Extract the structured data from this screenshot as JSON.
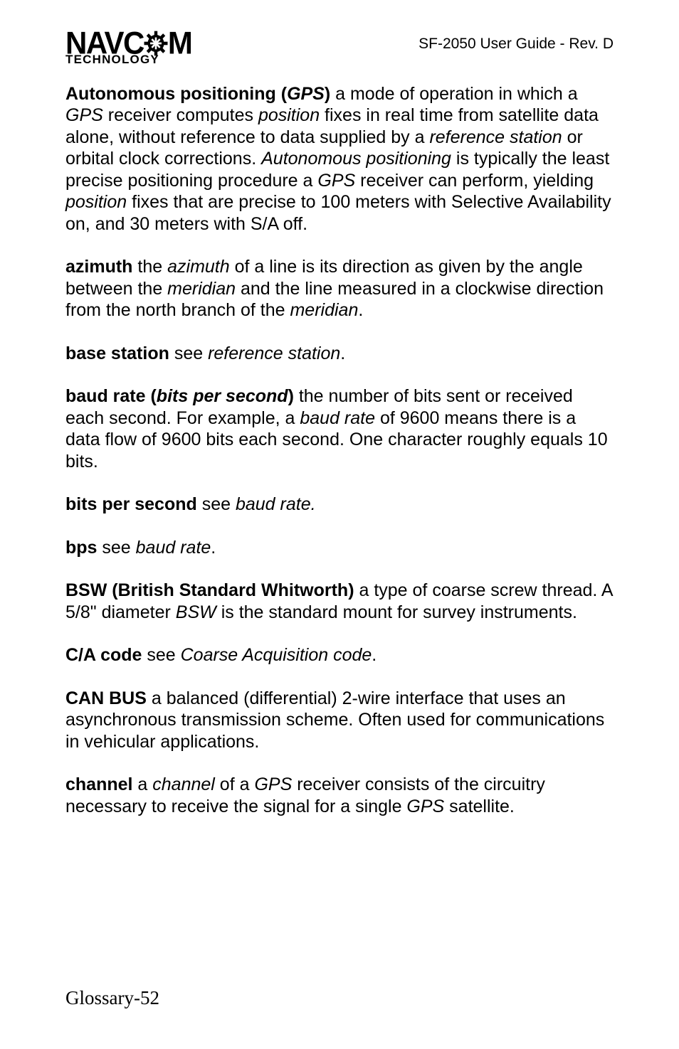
{
  "header": {
    "logo_top_parts": {
      "pre": "NAVC",
      "post": "M"
    },
    "logo_sub": "TECHNOLOGY",
    "right": "SF-2050 User Guide - Rev. D"
  },
  "entries": [
    {
      "runs": [
        {
          "t": "Autonomous positioning (",
          "cls": "bold"
        },
        {
          "t": "GPS",
          "cls": "bold-ital"
        },
        {
          "t": ")",
          "cls": "bold"
        },
        {
          "t": "  a mode of operation in which a "
        },
        {
          "t": "GPS",
          "cls": "ital"
        },
        {
          "t": " receiver computes "
        },
        {
          "t": "position",
          "cls": "ital"
        },
        {
          "t": " fixes in real time from satellite data alone, without reference to data supplied by a "
        },
        {
          "t": "reference station",
          "cls": "ital"
        },
        {
          "t": " or orbital clock corrections. "
        },
        {
          "t": "Autonomous positioning",
          "cls": "ital"
        },
        {
          "t": " is typically the least precise positioning procedure a "
        },
        {
          "t": "GPS",
          "cls": "ital"
        },
        {
          "t": " receiver can perform, yielding "
        },
        {
          "t": "position",
          "cls": "ital"
        },
        {
          "t": " fixes that are precise to 100 meters with Selective Availability on, and 30 meters with S/A off."
        }
      ]
    },
    {
      "runs": [
        {
          "t": "azimuth",
          "cls": "bold"
        },
        {
          "t": " the "
        },
        {
          "t": "azimuth",
          "cls": "ital"
        },
        {
          "t": " of a line is its direction as given by the angle between the "
        },
        {
          "t": "meridian",
          "cls": "ital"
        },
        {
          "t": " and the line measured in a clockwise direction from the north branch of the "
        },
        {
          "t": "meridian",
          "cls": "ital"
        },
        {
          "t": "."
        }
      ]
    },
    {
      "runs": [
        {
          "t": "base station",
          "cls": "bold"
        },
        {
          "t": " see "
        },
        {
          "t": "reference station",
          "cls": "ital"
        },
        {
          "t": "."
        }
      ]
    },
    {
      "runs": [
        {
          "t": "baud rate (",
          "cls": "bold"
        },
        {
          "t": "bits per second",
          "cls": "bold-ital"
        },
        {
          "t": ")",
          "cls": "bold"
        },
        {
          "t": " the number of bits sent or received each second. For example, a "
        },
        {
          "t": "baud rate",
          "cls": "ital"
        },
        {
          "t": " of 9600 means there is a data flow of 9600 bits each second. One character roughly equals 10 bits."
        }
      ]
    },
    {
      "runs": [
        {
          "t": "bits per second",
          "cls": "bold"
        },
        {
          "t": " see "
        },
        {
          "t": "baud rate.",
          "cls": "ital"
        }
      ]
    },
    {
      "runs": [
        {
          "t": "bps",
          "cls": "bold"
        },
        {
          "t": " see "
        },
        {
          "t": "baud rate",
          "cls": "ital"
        },
        {
          "t": "."
        }
      ]
    },
    {
      "runs": [
        {
          "t": "BSW (British Standard Whitworth)",
          "cls": "bold"
        },
        {
          "t": " a type of coarse screw thread. A 5/8\" diameter "
        },
        {
          "t": "BSW",
          "cls": "ital"
        },
        {
          "t": " is the standard mount for survey instruments."
        }
      ]
    },
    {
      "runs": [
        {
          "t": "C/A code",
          "cls": "bold"
        },
        {
          "t": " see "
        },
        {
          "t": "Coarse Acquisition code",
          "cls": "ital"
        },
        {
          "t": "."
        }
      ]
    },
    {
      "runs": [
        {
          "t": "CAN BUS",
          "cls": "bold"
        },
        {
          "t": " a balanced (differential) 2-wire interface that uses an asynchronous transmission scheme. Often used for communications in vehicular applications."
        }
      ]
    },
    {
      "runs": [
        {
          "t": "channel",
          "cls": "bold"
        },
        {
          "t": " a "
        },
        {
          "t": "channel",
          "cls": "ital"
        },
        {
          "t": " of a "
        },
        {
          "t": "GPS",
          "cls": "ital"
        },
        {
          "t": " receiver consists of the circuitry necessary to receive the signal for a single "
        },
        {
          "t": "GPS",
          "cls": "ital"
        },
        {
          "t": " satellite."
        }
      ]
    }
  ],
  "footer": "Glossary-52"
}
